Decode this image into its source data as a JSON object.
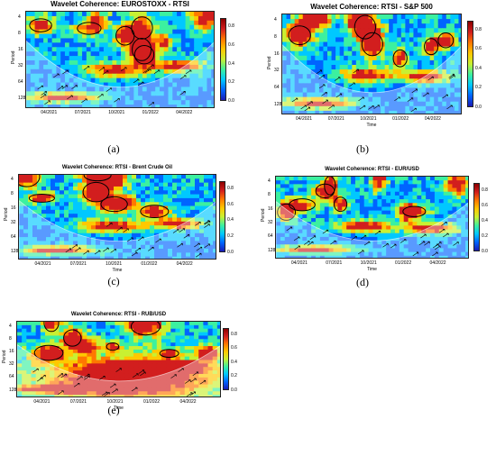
{
  "colors": {
    "scale": [
      "#1a1ab4",
      "#0064ff",
      "#00c8ff",
      "#3cf0a0",
      "#c8f032",
      "#ffc800",
      "#ff7800",
      "#d21e1e",
      "#8c0000"
    ]
  },
  "chart_data": [
    {
      "type": "heatmap",
      "title": "Wavelet Coherence: EUROSTOXX - RTSI",
      "xlabel": "",
      "ylabel": "Period",
      "x_ticks": [
        "04/2021",
        "07/2021",
        "10/2021",
        "01/2022",
        "04/2022"
      ],
      "y_ticks": [
        "4",
        "8",
        "16",
        "32",
        "64",
        "128"
      ],
      "colorbar_ticks": [
        "0.0",
        "0.2",
        "0.4",
        "0.6",
        "0.8"
      ],
      "zlim": [
        0,
        1
      ],
      "panel_label": "(a)"
    },
    {
      "type": "heatmap",
      "title": "Wavelet Coherence: RTSI - S&P 500",
      "xlabel": "Time",
      "ylabel": "Period",
      "x_ticks": [
        "04/2021",
        "07/2021",
        "10/2021",
        "01/2022",
        "04/2022"
      ],
      "y_ticks": [
        "4",
        "8",
        "16",
        "32",
        "64",
        "128"
      ],
      "colorbar_ticks": [
        "0.0",
        "0.2",
        "0.4",
        "0.6",
        "0.8"
      ],
      "zlim": [
        0,
        1
      ],
      "panel_label": "(b)"
    },
    {
      "type": "heatmap",
      "title": "Wavelet Coherence: RTSI - Brent Crude Oil",
      "xlabel": "Time",
      "ylabel": "Period",
      "x_ticks": [
        "04/2021",
        "07/2021",
        "10/2021",
        "01/2022",
        "04/2022"
      ],
      "y_ticks": [
        "4",
        "8",
        "16",
        "32",
        "64",
        "128"
      ],
      "colorbar_ticks": [
        "0.0",
        "0.2",
        "0.4",
        "0.6",
        "0.8"
      ],
      "zlim": [
        0,
        1
      ],
      "panel_label": "(c)"
    },
    {
      "type": "heatmap",
      "title": "Wavelet Coherence: RTSI - EUR/USD",
      "xlabel": "Time",
      "ylabel": "Period",
      "x_ticks": [
        "04/2021",
        "07/2021",
        "10/2021",
        "01/2022",
        "04/2022"
      ],
      "y_ticks": [
        "4",
        "8",
        "16",
        "32",
        "64",
        "128"
      ],
      "colorbar_ticks": [
        "0.0",
        "0.2",
        "0.4",
        "0.6",
        "0.8"
      ],
      "zlim": [
        0,
        1
      ],
      "panel_label": "(d)"
    },
    {
      "type": "heatmap",
      "title": "Wavelet Coherence: RTSI - RUB/USD",
      "xlabel": "Time",
      "ylabel": "Period",
      "x_ticks": [
        "04/2021",
        "07/2021",
        "10/2021",
        "01/2022",
        "04/2022"
      ],
      "y_ticks": [
        "4",
        "8",
        "16",
        "32",
        "64",
        "128"
      ],
      "colorbar_ticks": [
        "0.0",
        "0.2",
        "0.4",
        "0.6",
        "0.8"
      ],
      "zlim": [
        0,
        1
      ],
      "panel_label": "(e)"
    }
  ]
}
